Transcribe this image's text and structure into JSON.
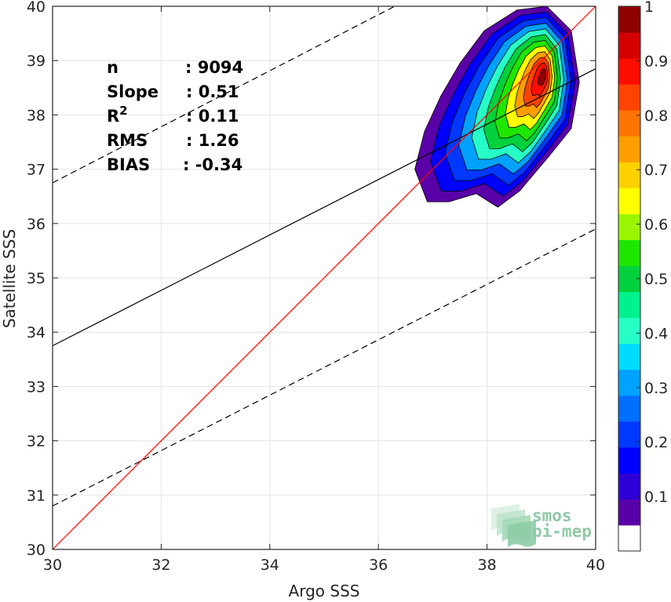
{
  "chart_data": {
    "type": "heatmap",
    "title": "",
    "xlabel": "Argo SSS",
    "ylabel": "Satellite SSS",
    "xlim": [
      30,
      40
    ],
    "ylim": [
      30,
      40
    ],
    "xticks": [
      "30",
      "32",
      "34",
      "36",
      "38",
      "40"
    ],
    "yticks": [
      "30",
      "31",
      "32",
      "33",
      "34",
      "35",
      "36",
      "37",
      "38",
      "39",
      "40"
    ],
    "grid": true,
    "stats": [
      {
        "label": "n",
        "value": ": 9094"
      },
      {
        "label": "Slope",
        "value": ": 0.51"
      },
      {
        "label": "R",
        "sup": "2",
        "value": ": 0.11"
      },
      {
        "label": "RMS",
        "value": ": 1.26"
      },
      {
        "label": "BIAS",
        "value": ": -0.34"
      }
    ],
    "lines": {
      "identity": {
        "x": [
          30,
          40
        ],
        "y": [
          30,
          40
        ],
        "color": "#ff0000"
      },
      "regression": {
        "x": [
          30,
          40
        ],
        "y": [
          33.75,
          38.85
        ],
        "color": "#000000"
      },
      "upper_bound": {
        "x": [
          30,
          36.3
        ],
        "y": [
          36.75,
          40
        ],
        "color": "#000000",
        "style": "dashed"
      },
      "lower_bound": {
        "x": [
          30,
          40
        ],
        "y": [
          30.8,
          35.9
        ],
        "color": "#000000",
        "style": "dashed"
      }
    },
    "density_peak": {
      "x": 39.05,
      "y": 38.75
    },
    "density_extent": {
      "x": [
        36.7,
        39.7
      ],
      "y": [
        36.3,
        40
      ]
    },
    "colorbar": {
      "range": [
        0,
        1
      ],
      "ticks": [
        "0.1",
        "0.2",
        "0.3",
        "0.4",
        "0.5",
        "0.6",
        "0.7",
        "0.8",
        "0.9",
        "1"
      ],
      "colors": [
        "#ffffff",
        "#5a00a8",
        "#2e00d8",
        "#0000ff",
        "#0038ff",
        "#006eff",
        "#00a2ff",
        "#00dcff",
        "#26ffc6",
        "#00f28e",
        "#00d13c",
        "#1ee600",
        "#9af500",
        "#ffff00",
        "#ffd000",
        "#ff9e00",
        "#ff7300",
        "#ff4300",
        "#ff0d00",
        "#d40000",
        "#8e0000"
      ]
    }
  },
  "logo": {
    "line1": "smos",
    "line2": "pi-mep",
    "name": "smos-pi-mep-logo"
  }
}
